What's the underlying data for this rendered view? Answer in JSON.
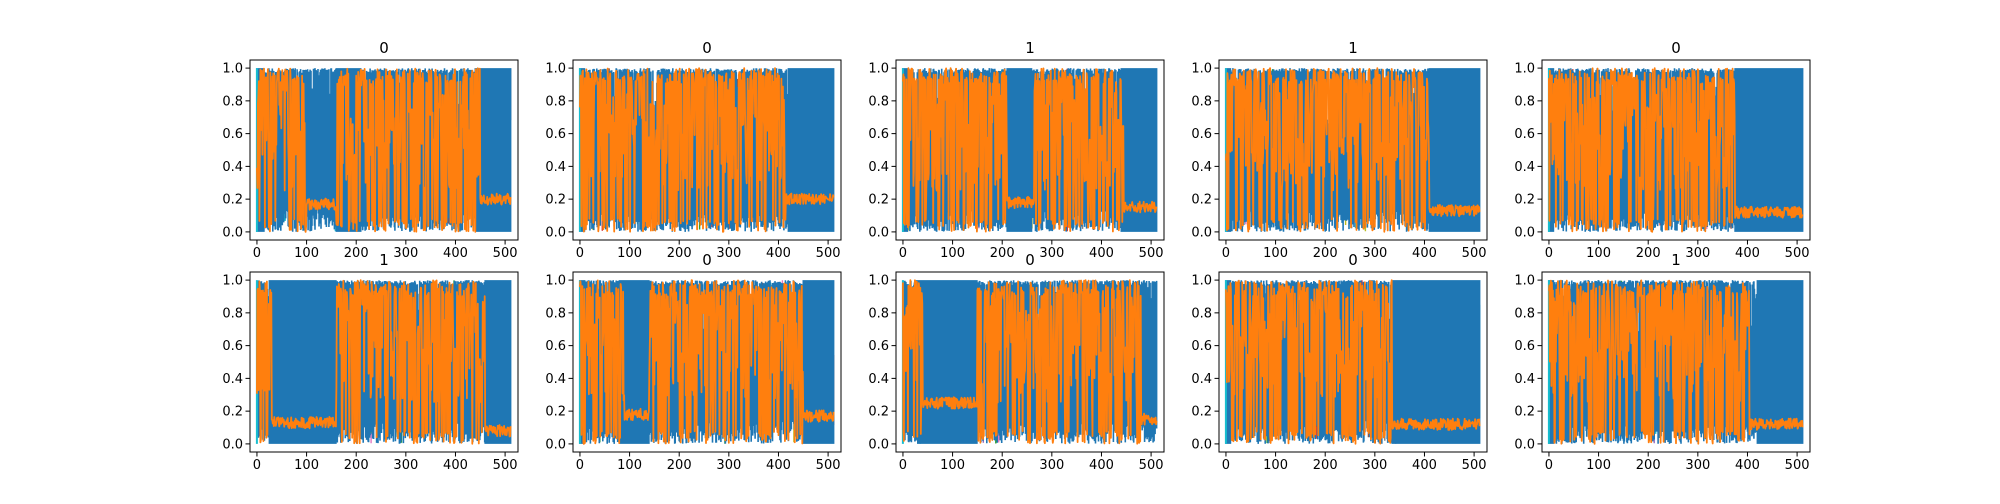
{
  "chart_data": [
    {
      "type": "line",
      "title": "0",
      "ylim": [
        0,
        1
      ],
      "xlim": [
        -14,
        526
      ],
      "x_ticks": [
        0,
        100,
        200,
        300,
        400,
        500
      ],
      "y_ticks": [
        0.0,
        0.2,
        0.4,
        0.6,
        0.8,
        1.0
      ],
      "grid": false,
      "series": [
        {
          "color": "#1f77b4",
          "low_segments": [
            [
              0,
              15
            ],
            [
              160,
              210
            ],
            [
              440,
              512
            ]
          ]
        },
        {
          "color": "#ff7f0e",
          "plateaus": [
            [
              100,
              160,
              0.17
            ],
            [
              450,
              512,
              0.2
            ]
          ]
        }
      ]
    },
    {
      "type": "line",
      "title": "0",
      "ylim": [
        0,
        1
      ],
      "xlim": [
        -14,
        526
      ],
      "x_ticks": [
        0,
        100,
        200,
        300,
        400,
        500
      ],
      "y_ticks": [
        0.0,
        0.2,
        0.4,
        0.6,
        0.8,
        1.0
      ],
      "grid": false,
      "series": [
        {
          "color": "#1f77b4",
          "low_segments": [
            [
              0,
              10
            ],
            [
              420,
              512
            ]
          ]
        },
        {
          "color": "#ff7f0e",
          "plateaus": [
            [
              415,
              512,
              0.2
            ]
          ]
        }
      ]
    },
    {
      "type": "line",
      "title": "1",
      "ylim": [
        0,
        1
      ],
      "xlim": [
        -14,
        526
      ],
      "x_ticks": [
        0,
        100,
        200,
        300,
        400,
        500
      ],
      "y_ticks": [
        0.0,
        0.2,
        0.4,
        0.6,
        0.8,
        1.0
      ],
      "grid": false,
      "series": [
        {
          "color": "#1f77b4",
          "low_segments": [
            [
              0,
              10
            ],
            [
              210,
              260
            ],
            [
              440,
              512
            ]
          ]
        },
        {
          "color": "#ff7f0e",
          "plateaus": [
            [
              210,
              265,
              0.18
            ],
            [
              445,
              512,
              0.15
            ]
          ]
        }
      ]
    },
    {
      "type": "line",
      "title": "1",
      "ylim": [
        0,
        1
      ],
      "xlim": [
        -14,
        526
      ],
      "x_ticks": [
        0,
        100,
        200,
        300,
        400,
        500
      ],
      "y_ticks": [
        0.0,
        0.2,
        0.4,
        0.6,
        0.8,
        1.0
      ],
      "grid": false,
      "series": [
        {
          "color": "#1f77b4",
          "low_segments": [
            [
              0,
              10
            ],
            [
              410,
              512
            ]
          ]
        },
        {
          "color": "#ff7f0e",
          "plateaus": [
            [
              410,
              512,
              0.13
            ]
          ]
        }
      ]
    },
    {
      "type": "line",
      "title": "0",
      "ylim": [
        0,
        1
      ],
      "xlim": [
        -14,
        526
      ],
      "x_ticks": [
        0,
        100,
        200,
        300,
        400,
        500
      ],
      "y_ticks": [
        0.0,
        0.2,
        0.4,
        0.6,
        0.8,
        1.0
      ],
      "grid": false,
      "series": [
        {
          "color": "#1f77b4",
          "low_segments": [
            [
              0,
              10
            ],
            [
              375,
              512
            ]
          ]
        },
        {
          "color": "#ff7f0e",
          "plateaus": [
            [
              375,
              512,
              0.12
            ]
          ]
        }
      ]
    },
    {
      "type": "line",
      "title": "1",
      "ylim": [
        0,
        1
      ],
      "xlim": [
        -14,
        526
      ],
      "x_ticks": [
        0,
        100,
        200,
        300,
        400,
        500
      ],
      "y_ticks": [
        0.0,
        0.2,
        0.4,
        0.6,
        0.8,
        1.0
      ],
      "grid": false,
      "series": [
        {
          "color": "#1f77b4",
          "low_segments": [
            [
              25,
              160
            ],
            [
              460,
              512
            ]
          ]
        },
        {
          "color": "#ff7f0e",
          "plateaus": [
            [
              30,
              160,
              0.13
            ],
            [
              460,
              512,
              0.08
            ]
          ]
        }
      ]
    },
    {
      "type": "line",
      "title": "0",
      "ylim": [
        0,
        1
      ],
      "xlim": [
        -14,
        526
      ],
      "x_ticks": [
        0,
        100,
        200,
        300,
        400,
        500
      ],
      "y_ticks": [
        0.0,
        0.2,
        0.4,
        0.6,
        0.8,
        1.0
      ],
      "grid": false,
      "series": [
        {
          "color": "#1f77b4",
          "low_segments": [
            [
              0,
              10
            ],
            [
              80,
              140
            ],
            [
              450,
              512
            ]
          ]
        },
        {
          "color": "#ff7f0e",
          "plateaus": [
            [
              90,
              140,
              0.18
            ],
            [
              450,
              512,
              0.17
            ]
          ]
        }
      ]
    },
    {
      "type": "line",
      "title": "0",
      "ylim": [
        0,
        1
      ],
      "xlim": [
        -14,
        526
      ],
      "x_ticks": [
        0,
        100,
        200,
        300,
        400,
        500
      ],
      "y_ticks": [
        0.0,
        0.2,
        0.4,
        0.6,
        0.8,
        1.0
      ],
      "grid": false,
      "series": [
        {
          "color": "#1f77b4",
          "low_segments": [
            [
              30,
              150
            ]
          ]
        },
        {
          "color": "#ff7f0e",
          "plateaus": [
            [
              40,
              150,
              0.25
            ],
            [
              480,
              512,
              0.15
            ]
          ]
        }
      ]
    },
    {
      "type": "line",
      "title": "0",
      "ylim": [
        0,
        1
      ],
      "xlim": [
        -14,
        526
      ],
      "x_ticks": [
        0,
        100,
        200,
        300,
        400,
        500
      ],
      "y_ticks": [
        0.0,
        0.2,
        0.4,
        0.6,
        0.8,
        1.0
      ],
      "grid": false,
      "series": [
        {
          "color": "#1f77b4",
          "low_segments": [
            [
              0,
              10
            ],
            [
              335,
              512
            ]
          ]
        },
        {
          "color": "#ff7f0e",
          "plateaus": [
            [
              335,
              512,
              0.12
            ]
          ]
        }
      ]
    },
    {
      "type": "line",
      "title": "1",
      "ylim": [
        0,
        1
      ],
      "xlim": [
        -14,
        526
      ],
      "x_ticks": [
        0,
        100,
        200,
        300,
        400,
        500
      ],
      "y_ticks": [
        0.0,
        0.2,
        0.4,
        0.6,
        0.8,
        1.0
      ],
      "grid": false,
      "series": [
        {
          "color": "#1f77b4",
          "low_segments": [
            [
              0,
              10
            ],
            [
              420,
              512
            ]
          ]
        },
        {
          "color": "#ff7f0e",
          "plateaus": [
            [
              405,
              512,
              0.12
            ]
          ]
        }
      ]
    }
  ]
}
